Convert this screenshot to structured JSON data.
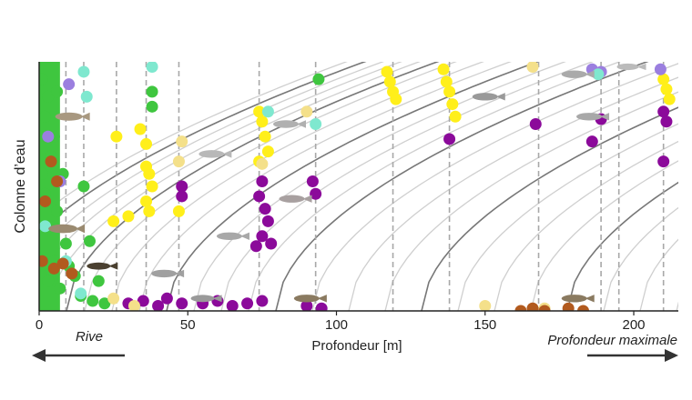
{
  "chart_data": {
    "type": "scatter",
    "title": "",
    "xlabel": "Profondeur [m]",
    "ylabel": "Colonne d’eau",
    "xlim": [
      0,
      215
    ],
    "ylim": [
      0,
      1
    ],
    "grid": false,
    "x_ticks": [
      0,
      50,
      100,
      150,
      200
    ],
    "annotations": {
      "left": "Rive",
      "right": "Profondeur maximale"
    },
    "depth_markers_m": [
      9,
      15,
      26,
      36,
      47,
      74,
      93,
      119,
      138,
      168,
      189,
      195,
      210
    ],
    "colors": {
      "green": "#3fc63f",
      "yellow": "#ffef1a",
      "purple": "#8b0a9a",
      "lavender": "#9b7fdf",
      "aqua": "#7fe8cf",
      "beige": "#f4e08a",
      "brown": "#b25a1e",
      "darkbrown": "#8a4a20"
    },
    "series": [
      {
        "name": "vert",
        "color": "#3fc63f",
        "points": [
          [
            1,
            0.93
          ],
          [
            3,
            0.86
          ],
          [
            2,
            0.78
          ],
          [
            5,
            0.7
          ],
          [
            4,
            0.62
          ],
          [
            8,
            0.55
          ],
          [
            2,
            0.47
          ],
          [
            6,
            0.4
          ],
          [
            3,
            0.33
          ],
          [
            9,
            0.27
          ],
          [
            5,
            0.2
          ],
          [
            12,
            0.14
          ],
          [
            7,
            0.09
          ],
          [
            14,
            0.06
          ],
          [
            18,
            0.04
          ],
          [
            22,
            0.03
          ],
          [
            3,
            0.12
          ],
          [
            10,
            0.18
          ],
          [
            1,
            0.55
          ],
          [
            6,
            0.88
          ],
          [
            15,
            0.5
          ],
          [
            17,
            0.28
          ],
          [
            20,
            0.12
          ],
          [
            38,
            0.88
          ],
          [
            38,
            0.82
          ],
          [
            94,
            0.93
          ]
        ]
      },
      {
        "name": "jaune",
        "color": "#ffef1a",
        "points": [
          [
            26,
            0.7
          ],
          [
            34,
            0.73
          ],
          [
            36,
            0.67
          ],
          [
            36,
            0.58
          ],
          [
            37,
            0.55
          ],
          [
            38,
            0.5
          ],
          [
            36,
            0.44
          ],
          [
            37,
            0.4
          ],
          [
            25,
            0.36
          ],
          [
            30,
            0.38
          ],
          [
            47,
            0.4
          ],
          [
            74,
            0.8
          ],
          [
            75,
            0.76
          ],
          [
            76,
            0.7
          ],
          [
            77,
            0.64
          ],
          [
            74,
            0.6
          ],
          [
            117,
            0.96
          ],
          [
            118,
            0.92
          ],
          [
            119,
            0.88
          ],
          [
            120,
            0.85
          ],
          [
            136,
            0.97
          ],
          [
            137,
            0.92
          ],
          [
            138,
            0.88
          ],
          [
            139,
            0.83
          ],
          [
            140,
            0.78
          ],
          [
            210,
            0.93
          ],
          [
            211,
            0.89
          ],
          [
            212,
            0.85
          ]
        ]
      },
      {
        "name": "violet",
        "color": "#8b0a9a",
        "points": [
          [
            48,
            0.5
          ],
          [
            48,
            0.46
          ],
          [
            75,
            0.52
          ],
          [
            74,
            0.46
          ],
          [
            76,
            0.41
          ],
          [
            77,
            0.36
          ],
          [
            75,
            0.3
          ],
          [
            73,
            0.26
          ],
          [
            78,
            0.27
          ],
          [
            92,
            0.52
          ],
          [
            93,
            0.47
          ],
          [
            138,
            0.69
          ],
          [
            167,
            0.75
          ],
          [
            186,
            0.68
          ],
          [
            189,
            0.77
          ],
          [
            210,
            0.8
          ],
          [
            211,
            0.76
          ],
          [
            210,
            0.6
          ],
          [
            43,
            0.05
          ],
          [
            48,
            0.03
          ],
          [
            55,
            0.03
          ],
          [
            60,
            0.04
          ],
          [
            65,
            0.02
          ],
          [
            70,
            0.03
          ],
          [
            75,
            0.04
          ],
          [
            90,
            0.02
          ],
          [
            95,
            0.01
          ],
          [
            30,
            0.03
          ],
          [
            35,
            0.04
          ],
          [
            40,
            0.02
          ]
        ]
      },
      {
        "name": "lavande",
        "color": "#9b7fdf",
        "points": [
          [
            10,
            0.91
          ],
          [
            3,
            0.7
          ],
          [
            7,
            0.52
          ],
          [
            186,
            0.97
          ],
          [
            189,
            0.96
          ],
          [
            209,
            0.97
          ]
        ]
      },
      {
        "name": "turquoise",
        "color": "#7fe8cf",
        "points": [
          [
            15,
            0.96
          ],
          [
            16,
            0.86
          ],
          [
            38,
            0.98
          ],
          [
            77,
            0.8
          ],
          [
            93,
            0.75
          ],
          [
            188,
            0.95
          ],
          [
            2,
            0.34
          ],
          [
            9,
            0.2
          ],
          [
            14,
            0.07
          ]
        ]
      },
      {
        "name": "beige",
        "color": "#f4e08a",
        "points": [
          [
            48,
            0.68
          ],
          [
            47,
            0.6
          ],
          [
            90,
            0.8
          ],
          [
            166,
            0.98
          ],
          [
            75,
            0.59
          ],
          [
            25,
            0.05
          ],
          [
            32,
            0.02
          ],
          [
            150,
            0.02
          ],
          [
            170,
            0.01
          ]
        ]
      },
      {
        "name": "brun",
        "color": "#b25a1e",
        "points": [
          [
            1,
            0.2
          ],
          [
            5,
            0.17
          ],
          [
            8,
            0.19
          ],
          [
            11,
            0.15
          ],
          [
            4,
            0.6
          ],
          [
            2,
            0.44
          ],
          [
            6,
            0.52
          ],
          [
            162,
            0.0
          ],
          [
            166,
            0.01
          ],
          [
            170,
            0.0
          ],
          [
            178,
            0.01
          ],
          [
            183,
            0.0
          ]
        ]
      }
    ]
  }
}
